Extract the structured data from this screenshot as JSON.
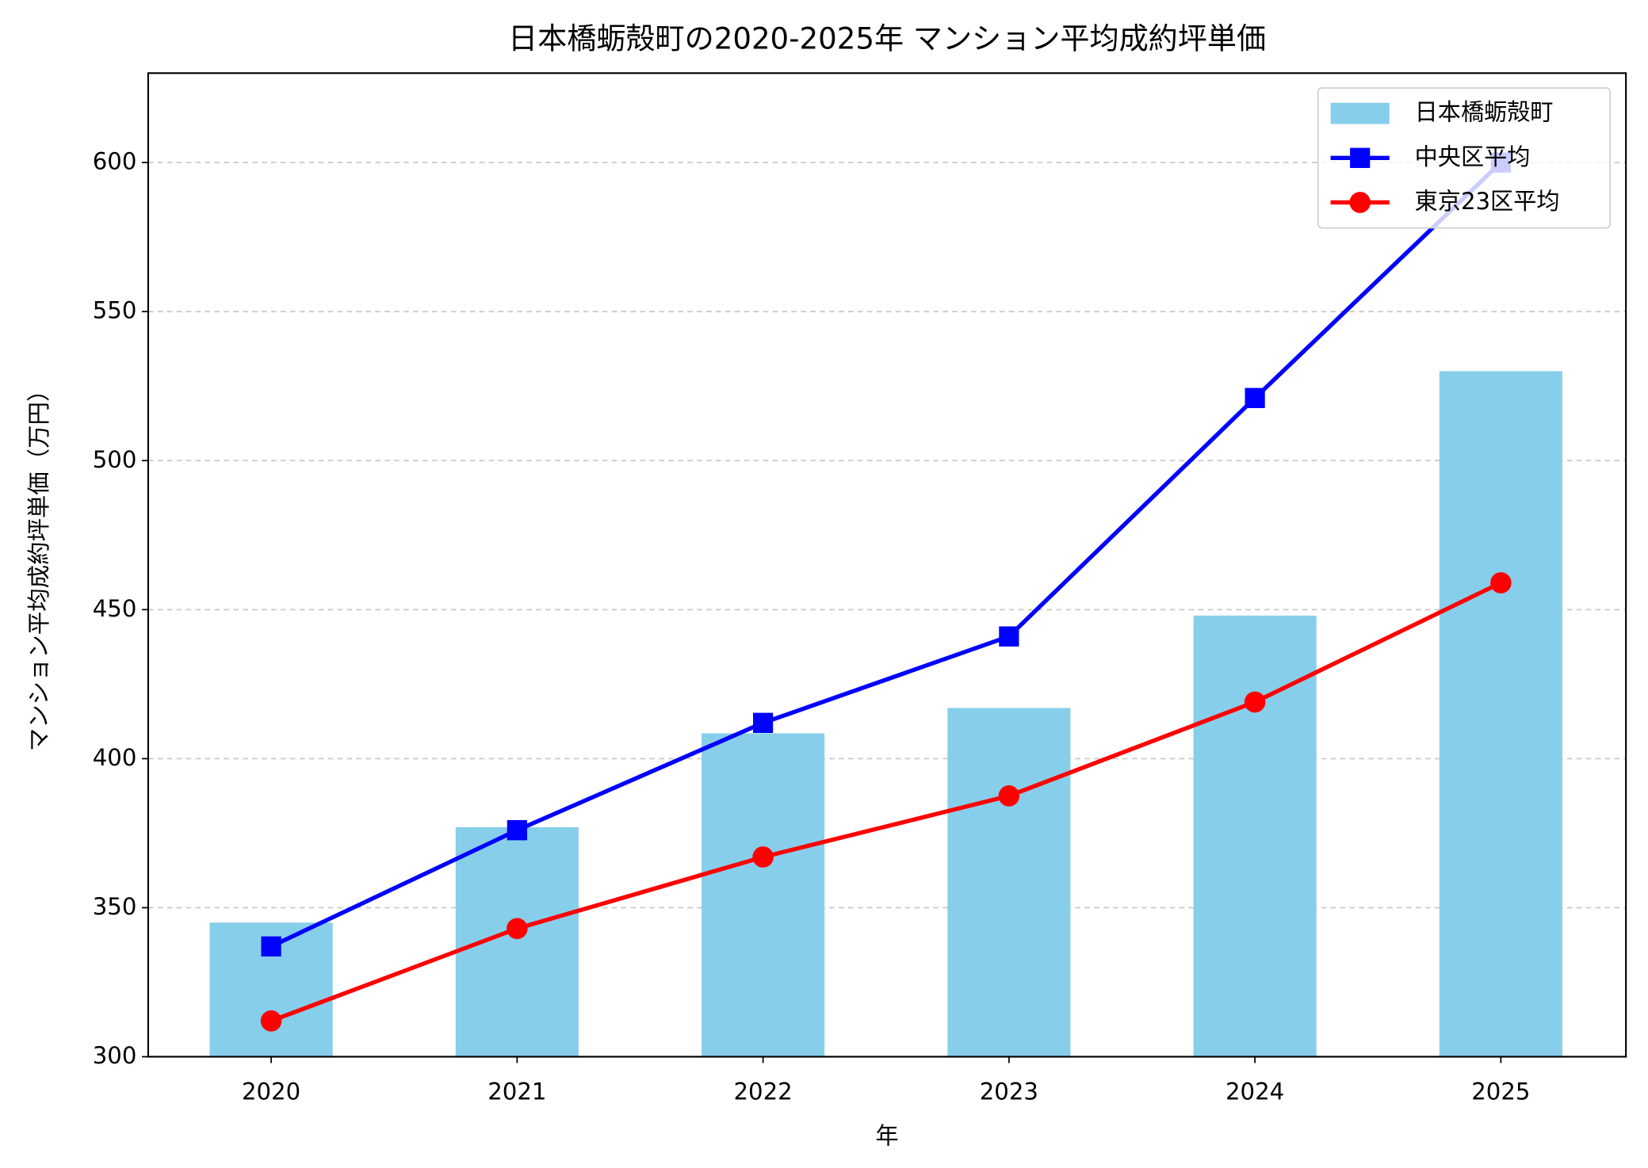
{
  "chart_data": {
    "type": "bar",
    "title": "日本橋蛎殻町の2020-2025年 マンション平均成約坪単価",
    "x_label": "年",
    "y_label": "マンション平均成約坪単価（万円）",
    "categories": [
      "2020",
      "2021",
      "2022",
      "2023",
      "2024",
      "2025"
    ],
    "series": [
      {
        "name": "日本橋蛎殻町",
        "type": "bar",
        "color": "#87ceeb",
        "values": [
          345,
          377,
          408.5,
          417,
          448,
          530
        ]
      },
      {
        "name": "中央区平均",
        "type": "line",
        "marker": "square",
        "color": "#0000ff",
        "values": [
          337,
          376,
          412,
          441,
          521,
          600
        ]
      },
      {
        "name": "東京23区平均",
        "type": "line",
        "marker": "circle",
        "color": "#ff0000",
        "values": [
          312,
          343,
          367,
          387.5,
          419,
          459
        ]
      }
    ],
    "ylim": [
      300,
      630
    ],
    "yticks": [
      300,
      350,
      400,
      450,
      500,
      550,
      600
    ],
    "grid": true,
    "legend": "upper right"
  }
}
